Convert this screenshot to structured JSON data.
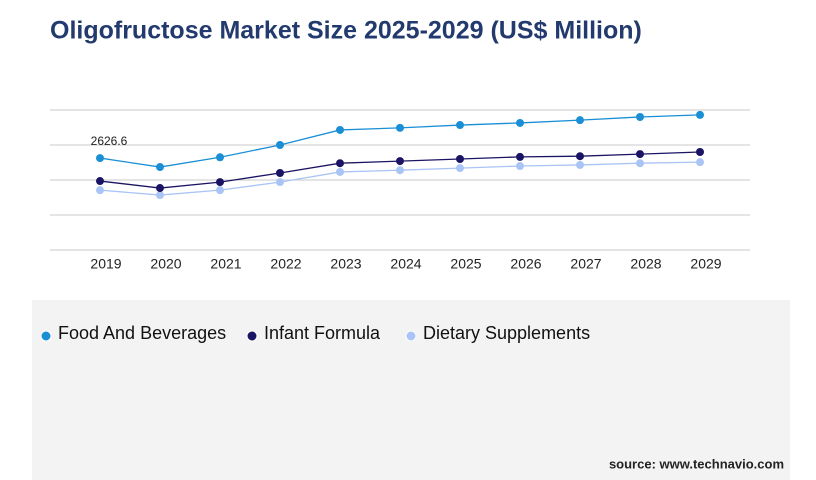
{
  "chart_data": {
    "type": "line",
    "title": "Oligofructose Market Size 2025-2029 (US$ Million)",
    "categories": [
      "2019",
      "2020",
      "2021",
      "2022",
      "2023",
      "2024",
      "2025",
      "2026",
      "2027",
      "2028",
      "2029"
    ],
    "series": [
      {
        "name": "Food And Beverages",
        "color": "#1a8fd6",
        "values": [
          2626.6,
          2370,
          2650,
          3000,
          3430,
          3490,
          3570,
          3630,
          3710,
          3800,
          3860
        ],
        "value_labels": [
          "2626.6",
          null,
          null,
          null,
          null,
          null,
          null,
          null,
          null,
          null,
          null
        ]
      },
      {
        "name": "Infant Formula",
        "color": "#1b1464",
        "values": [
          1970,
          1770,
          1940,
          2200,
          2480,
          2540,
          2600,
          2660,
          2680,
          2740,
          2800
        ]
      },
      {
        "name": "Dietary Supplements",
        "color": "#a9c4f5",
        "values": [
          1710,
          1570,
          1710,
          1940,
          2230,
          2280,
          2340,
          2400,
          2430,
          2480,
          2510
        ]
      }
    ],
    "ylim": [
      0,
      4000
    ],
    "ygrid": [
      0,
      1000,
      2000,
      3000,
      4000
    ],
    "grid": true,
    "source": "source: www.technavio.com"
  }
}
